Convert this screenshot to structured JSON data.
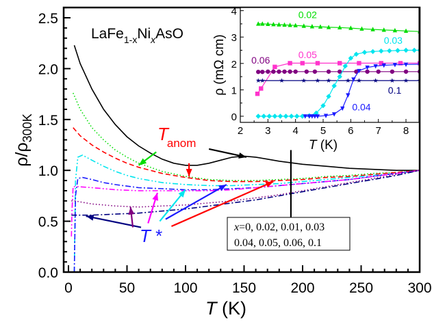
{
  "chart_data": [
    {
      "type": "line",
      "title": "",
      "compound_label": {
        "base": "LaFe",
        "sub1": "1-x",
        "mid": "Ni",
        "sub2": "x",
        "end": "AsO"
      },
      "xlabel": {
        "italic": "T",
        "rest": " (K)"
      },
      "ylabel": {
        "main": "ρ/ρ",
        "sub": "300K"
      },
      "xlim": [
        -5,
        300
      ],
      "ylim": [
        0,
        2.6
      ],
      "xticks": [
        0,
        50,
        100,
        150,
        200,
        250,
        300
      ],
      "xtick_labels": [
        "0",
        "50",
        "100",
        "150",
        "200",
        "250",
        "300"
      ],
      "yticks": [
        0,
        0.5,
        1.0,
        1.5,
        2.0,
        2.5
      ],
      "ytick_labels": [
        "0.0",
        "0.5",
        "1.0",
        "1.5",
        "2.0",
        "2.5"
      ],
      "grid": false,
      "series": [
        {
          "name": "x=0",
          "color": "#000000",
          "dash": "solid",
          "x": [
            5,
            10,
            20,
            30,
            40,
            50,
            60,
            70,
            80,
            90,
            100,
            110,
            120,
            130,
            140,
            150,
            160,
            170,
            180,
            200,
            220,
            240,
            260,
            280,
            300
          ],
          "y": [
            2.23,
            2.05,
            1.8,
            1.6,
            1.45,
            1.33,
            1.24,
            1.17,
            1.11,
            1.07,
            1.05,
            1.05,
            1.07,
            1.1,
            1.13,
            1.14,
            1.13,
            1.11,
            1.09,
            1.06,
            1.04,
            1.02,
            1.01,
            1.0,
            1.0
          ]
        },
        {
          "name": "x=0.02",
          "color": "#00dd00",
          "dash": "dotted",
          "x": [
            4,
            10,
            20,
            30,
            40,
            50,
            60,
            70,
            80,
            100,
            120,
            140,
            160,
            180,
            200,
            220,
            240,
            260,
            280,
            300
          ],
          "y": [
            1.76,
            1.6,
            1.42,
            1.3,
            1.2,
            1.13,
            1.07,
            1.03,
            0.99,
            0.94,
            0.91,
            0.9,
            0.9,
            0.91,
            0.92,
            0.94,
            0.95,
            0.97,
            0.98,
            1.0
          ]
        },
        {
          "name": "x=0.01",
          "color": "#ff0000",
          "dash": "dashed",
          "x": [
            4,
            10,
            20,
            30,
            40,
            50,
            60,
            70,
            80,
            100,
            120,
            140,
            160,
            180,
            200,
            220,
            240,
            260,
            280,
            300
          ],
          "y": [
            1.42,
            1.34,
            1.25,
            1.18,
            1.12,
            1.07,
            1.03,
            1.0,
            0.97,
            0.93,
            0.9,
            0.89,
            0.89,
            0.9,
            0.91,
            0.93,
            0.94,
            0.96,
            0.98,
            1.0
          ]
        },
        {
          "name": "x=0.03",
          "color": "#00e5ee",
          "dash": "dash-dot-dot",
          "x": [
            5,
            6,
            8,
            12,
            20,
            30,
            40,
            50,
            60,
            80,
            100,
            120,
            140,
            160,
            180,
            200,
            220,
            240,
            260,
            280,
            300
          ],
          "y": [
            0.0,
            0.9,
            1.13,
            1.15,
            1.1,
            1.04,
            0.99,
            0.95,
            0.92,
            0.88,
            0.86,
            0.85,
            0.85,
            0.86,
            0.87,
            0.89,
            0.91,
            0.93,
            0.95,
            0.97,
            1.0
          ]
        },
        {
          "name": "x=0.04",
          "color": "#1a1aff",
          "dash": "dash-dot",
          "x": [
            5,
            6,
            8,
            12,
            20,
            30,
            40,
            60,
            80,
            100,
            120,
            140,
            160,
            180,
            200,
            220,
            240,
            260,
            280,
            300
          ],
          "y": [
            0.0,
            0.75,
            0.92,
            0.93,
            0.91,
            0.88,
            0.86,
            0.83,
            0.82,
            0.81,
            0.81,
            0.82,
            0.83,
            0.85,
            0.87,
            0.89,
            0.91,
            0.94,
            0.97,
            1.0
          ]
        },
        {
          "name": "x=0.05",
          "color": "#ff00ff",
          "dash": "dash-dot-dot",
          "x": [
            2.5,
            3,
            4,
            8,
            20,
            40,
            60,
            80,
            100,
            120,
            140,
            160,
            180,
            200,
            220,
            240,
            260,
            280,
            300
          ],
          "y": [
            0.35,
            0.6,
            0.84,
            0.84,
            0.83,
            0.81,
            0.8,
            0.8,
            0.8,
            0.8,
            0.81,
            0.83,
            0.85,
            0.87,
            0.89,
            0.91,
            0.94,
            0.97,
            1.0
          ]
        },
        {
          "name": "x=0.06",
          "color": "#800080",
          "dash": "dotted",
          "x": [
            2.5,
            5,
            10,
            20,
            40,
            60,
            80,
            100,
            120,
            140,
            160,
            180,
            200,
            220,
            240,
            260,
            280,
            300
          ],
          "y": [
            0.7,
            0.7,
            0.69,
            0.67,
            0.65,
            0.64,
            0.65,
            0.66,
            0.68,
            0.7,
            0.73,
            0.76,
            0.8,
            0.84,
            0.88,
            0.92,
            0.96,
            1.0
          ]
        },
        {
          "name": "x=0.1",
          "color": "#000080",
          "dash": "dash-dot",
          "x": [
            2.5,
            10,
            20,
            40,
            60,
            80,
            100,
            120,
            140,
            160,
            180,
            200,
            220,
            240,
            260,
            280,
            300
          ],
          "y": [
            0.56,
            0.56,
            0.56,
            0.57,
            0.58,
            0.6,
            0.62,
            0.65,
            0.68,
            0.71,
            0.75,
            0.79,
            0.83,
            0.87,
            0.91,
            0.95,
            1.0
          ]
        }
      ],
      "annotations": {
        "t_anom": {
          "text_italic": "T",
          "text_sub": "anom",
          "color": "#ff0000"
        },
        "t_star": {
          "text": "T *",
          "color": "#1a1aff"
        },
        "legend_box": {
          "line1_italic": "x",
          "line1_rest": "=0, 0.02, 0.01, 0.03",
          "line2": "0.04, 0.05, 0.06, 0.1"
        },
        "arrows": [
          {
            "target": "x=0.02 T_anom",
            "color": "#00dd00",
            "from": [
              75,
              1.18
            ],
            "to": [
              60,
              1.05
            ]
          },
          {
            "target": "x=0.01 T_anom",
            "color": "#ff0000",
            "from": [
              103,
              1.07
            ],
            "to": [
              103,
              0.94
            ]
          },
          {
            "target": "x=0 hump",
            "color": "#000000",
            "from": [
              120,
              1.21
            ],
            "to": [
              152,
              1.13
            ]
          },
          {
            "target": "legend",
            "color": "#000000",
            "from": [
              190,
              1.2
            ],
            "to": [
              190,
              0.4
            ]
          },
          {
            "target": "x=0.1 T*",
            "color": "#000080",
            "from": [
              62,
              0.44
            ],
            "to": [
              15,
              0.55
            ]
          },
          {
            "target": "x=0.06 T*",
            "color": "#800080",
            "from": [
              55,
              0.44
            ],
            "to": [
              53,
              0.64
            ]
          },
          {
            "target": "x=0.05 T*",
            "color": "#ff00ff",
            "from": [
              68,
              0.48
            ],
            "to": [
              76,
              0.78
            ]
          },
          {
            "target": "x=0.03 T*",
            "color": "#00e5ee",
            "from": [
              78,
              0.5
            ],
            "to": [
              100,
              0.81
            ]
          },
          {
            "target": "x=0.04 T*",
            "color": "#1a1aff",
            "from": [
              83,
              0.52
            ],
            "to": [
              135,
              0.86
            ]
          },
          {
            "target": "x=0.01 T*",
            "color": "#ff0000",
            "from": [
              88,
              0.45
            ],
            "to": [
              175,
              0.89
            ]
          }
        ]
      }
    },
    {
      "type": "scatter",
      "title": "inset",
      "xlabel": {
        "italic": "T",
        "rest": " (K)"
      },
      "ylabel": "ρ (mΩ cm)",
      "xlim": [
        2,
        8.5
      ],
      "ylim": [
        -0.25,
        4.1
      ],
      "xticks": [
        2,
        3,
        4,
        5,
        6,
        7,
        8
      ],
      "xtick_labels": [
        "2",
        "3",
        "4",
        "5",
        "6",
        "7",
        "8"
      ],
      "yticks": [
        0,
        1,
        2,
        3,
        4
      ],
      "ytick_labels": [
        "0",
        "1",
        "2",
        "3",
        "4"
      ],
      "grid": false,
      "series": [
        {
          "name": "0.02",
          "color": "#00dd00",
          "marker": "triangle-up",
          "x": [
            2.65,
            2.8,
            3.0,
            3.2,
            3.4,
            3.6,
            3.8,
            4.0,
            4.3,
            4.6,
            4.9,
            5.2,
            5.6,
            6.0,
            6.4,
            6.8,
            7.2,
            7.6,
            8.0,
            8.5
          ],
          "y": [
            3.5,
            3.5,
            3.49,
            3.48,
            3.47,
            3.46,
            3.45,
            3.44,
            3.42,
            3.4,
            3.39,
            3.37,
            3.36,
            3.34,
            3.31,
            3.29,
            3.27,
            3.25,
            3.23,
            3.21
          ]
        },
        {
          "name": "0.05",
          "color": "#ff33cc",
          "marker": "square",
          "x": [
            2.62,
            2.75,
            3.25,
            3.8,
            4.25,
            4.8,
            5.6,
            6.3,
            7.1,
            7.8,
            8.5
          ],
          "y": [
            0.85,
            1.05,
            1.87,
            2.01,
            2.01,
            2.01,
            2.01,
            2.01,
            2.01,
            2.01,
            2.01
          ]
        },
        {
          "name": "0.06",
          "color": "#800080",
          "marker": "circle",
          "x": [
            2.65,
            2.8,
            3.0,
            3.2,
            3.4,
            3.6,
            3.8,
            4.0,
            4.4,
            4.7,
            5.2,
            5.6,
            6.2,
            6.6,
            7.0,
            7.5,
            8.0,
            8.5
          ],
          "y": [
            1.68,
            1.68,
            1.69,
            1.69,
            1.69,
            1.69,
            1.69,
            1.69,
            1.69,
            1.69,
            1.69,
            1.69,
            1.69,
            1.69,
            1.69,
            1.69,
            1.69,
            1.69
          ]
        },
        {
          "name": "0.1",
          "color": "#000080",
          "marker": "star",
          "x": [
            2.65,
            2.8,
            3.5,
            4.3,
            4.8,
            5.2,
            5.9,
            6.3,
            6.9,
            7.5,
            8.0,
            8.5
          ],
          "y": [
            1.35,
            1.35,
            1.35,
            1.35,
            1.35,
            1.35,
            1.35,
            1.35,
            1.35,
            1.35,
            1.35,
            1.35
          ]
        },
        {
          "name": "0.03",
          "color": "#00e5ee",
          "marker": "diamond",
          "x": [
            2.65,
            2.85,
            3.05,
            3.25,
            3.45,
            3.65,
            3.85,
            4.05,
            4.25,
            4.5,
            4.75,
            5.0,
            5.2,
            5.4,
            5.6,
            5.8,
            6.0,
            6.2,
            6.5,
            6.8,
            7.1,
            7.4,
            7.7,
            8.0,
            8.3,
            8.5
          ],
          "y": [
            0.0,
            0.0,
            0.0,
            0.0,
            0.0,
            0.0,
            0.0,
            0.0,
            0.0,
            0.02,
            0.12,
            0.4,
            0.75,
            1.15,
            1.5,
            1.9,
            2.2,
            2.35,
            2.42,
            2.45,
            2.47,
            2.48,
            2.49,
            2.5,
            2.5,
            2.5
          ]
        },
        {
          "name": "0.04",
          "color": "#1a1aff",
          "marker": "triangle-down",
          "x": [
            4.35,
            4.5,
            4.6,
            4.7,
            4.8,
            5.1,
            5.4,
            5.7,
            5.9,
            6.1,
            6.3,
            6.6,
            6.9,
            7.2,
            7.6,
            8.0,
            8.5
          ],
          "y": [
            0.0,
            0.0,
            0.0,
            0.0,
            0.0,
            0.02,
            0.08,
            0.3,
            0.8,
            1.4,
            1.72,
            1.85,
            1.9,
            1.93,
            1.95,
            1.96,
            1.97
          ]
        }
      ],
      "labels": [
        {
          "text": "0.02",
          "color": "#00dd00",
          "x": 4.1,
          "y": 3.72
        },
        {
          "text": "0.05",
          "color": "#ff33cc",
          "x": 4.1,
          "y": 2.2
        },
        {
          "text": "0.06",
          "color": "#800080",
          "x": 2.4,
          "y": 2.0
        },
        {
          "text": "0.03",
          "color": "#00e5ee",
          "x": 7.2,
          "y": 2.75
        },
        {
          "text": "0.1",
          "color": "#000080",
          "x": 7.35,
          "y": 0.85
        },
        {
          "text": "0.04",
          "color": "#1a1aff",
          "x": 6.05,
          "y": 0.22
        }
      ]
    }
  ]
}
